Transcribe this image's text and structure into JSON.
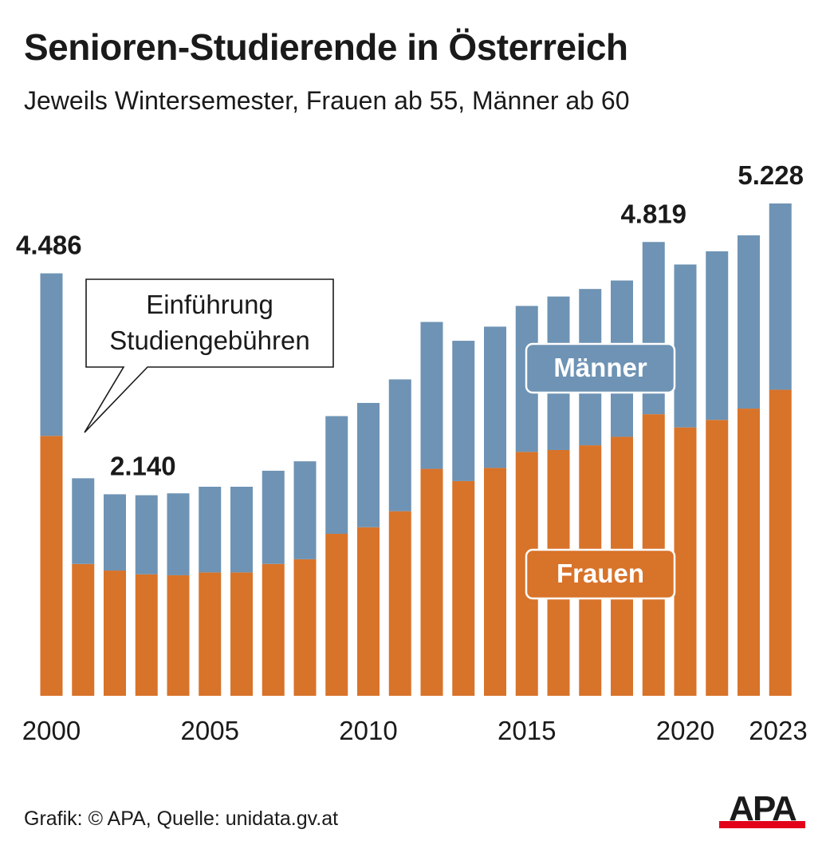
{
  "header": {
    "title": "Senioren-Studierende in Österreich",
    "subtitle": "Jeweils Wintersemester, Frauen ab 55, Männer ab 60"
  },
  "footer": {
    "source": "Grafik: © APA, Quelle: unidata.gv.at",
    "logo_text": "APA"
  },
  "annotation": {
    "lines": [
      "Einführung",
      "Studiengebühren"
    ]
  },
  "legend": {
    "maenner": "Männer",
    "frauen": "Frauen"
  },
  "colors": {
    "frauen": "#d8732a",
    "maenner": "#6e93b4",
    "text": "#1a1a1a",
    "logo_red": "#e2001a"
  },
  "chart_data": {
    "type": "bar",
    "stacked": true,
    "title": "Senioren-Studierende in Österreich",
    "subtitle": "Jeweils Wintersemester, Frauen ab 55, Männer ab 60",
    "categories": [
      2000,
      2001,
      2002,
      2003,
      2004,
      2005,
      2006,
      2007,
      2008,
      2009,
      2010,
      2011,
      2012,
      2013,
      2014,
      2015,
      2016,
      2017,
      2018,
      2019,
      2020,
      2021,
      2022,
      2023
    ],
    "x_tick_labels": [
      "2000",
      "2005",
      "2010",
      "2015",
      "2020",
      "2023"
    ],
    "series": [
      {
        "name": "Frauen",
        "color": "#d8732a",
        "values": [
          2760,
          1400,
          1330,
          1290,
          1280,
          1310,
          1310,
          1400,
          1450,
          1720,
          1790,
          1960,
          2410,
          2280,
          2420,
          2590,
          2610,
          2660,
          2750,
          2990,
          2850,
          2930,
          3050,
          3250
        ]
      },
      {
        "name": "Männer",
        "color": "#6e93b4",
        "values": [
          1726,
          910,
          810,
          840,
          870,
          910,
          910,
          990,
          1040,
          1250,
          1320,
          1400,
          1560,
          1490,
          1500,
          1550,
          1630,
          1660,
          1660,
          1829,
          1730,
          1790,
          1840,
          1978
        ]
      }
    ],
    "data_labels": [
      {
        "category": 2000,
        "text": "4.486"
      },
      {
        "category": 2002,
        "text": "2.140"
      },
      {
        "category": 2019,
        "text": "4.819"
      },
      {
        "category": 2023,
        "text": "5.228"
      }
    ],
    "ylim": [
      0,
      5228
    ],
    "grid": false,
    "legend": "inside"
  }
}
